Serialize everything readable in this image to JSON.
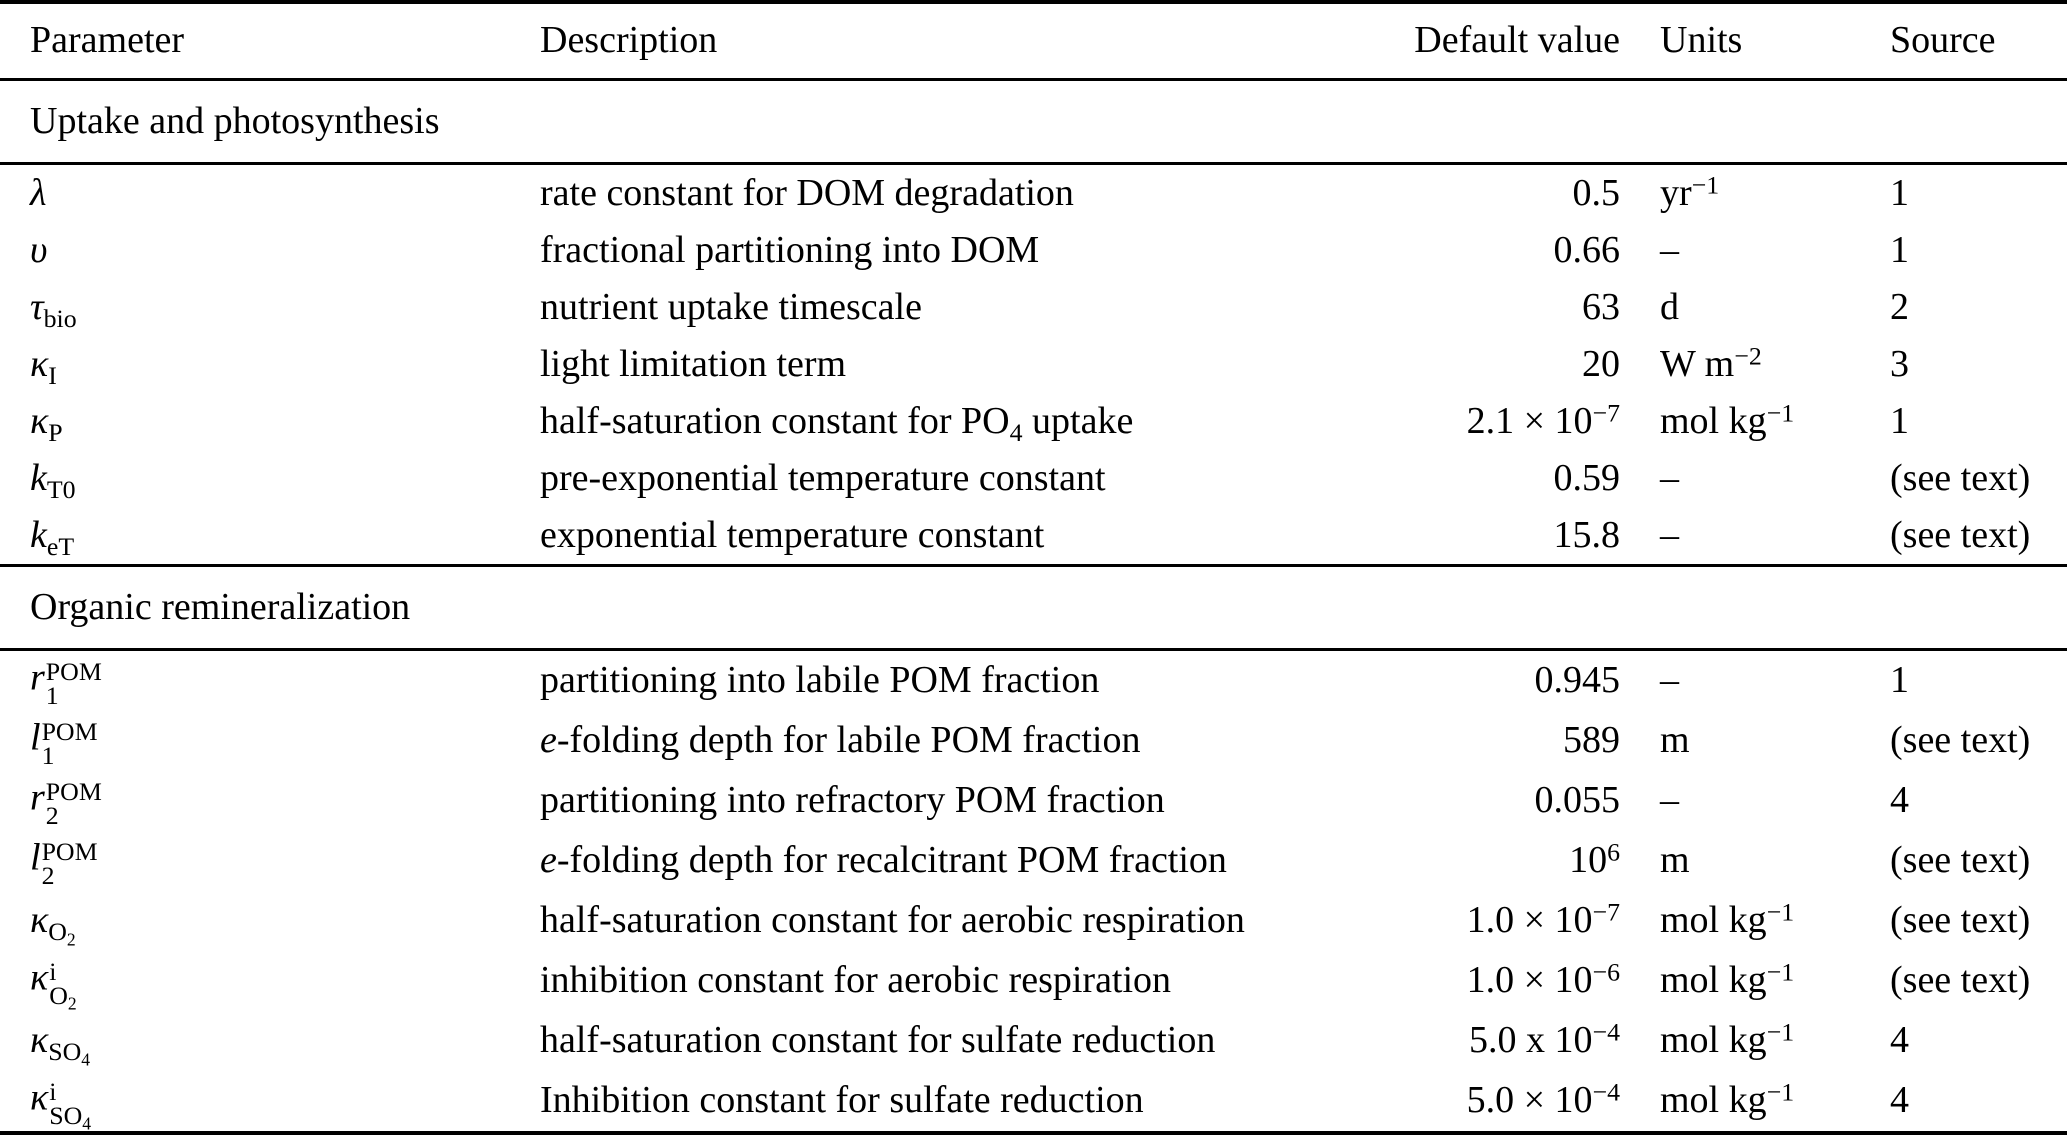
{
  "colors": {
    "text": "#000000",
    "background": "#ffffff"
  },
  "table": {
    "columns": [
      "Parameter",
      "Description",
      "Default value",
      "Units",
      "Source"
    ],
    "sections": [
      {
        "title": "Uptake and photosynthesis",
        "rows": [
          {
            "param": [
              {
                "i": "λ"
              }
            ],
            "desc": [
              {
                "t": "rate constant for DOM degradation"
              }
            ],
            "value": [
              {
                "t": "0.5"
              }
            ],
            "units": [
              {
                "t": "yr"
              },
              {
                "sup": "−1"
              }
            ],
            "source": [
              {
                "t": "1"
              }
            ]
          },
          {
            "param": [
              {
                "i": "υ"
              }
            ],
            "desc": [
              {
                "t": "fractional partitioning into DOM"
              }
            ],
            "value": [
              {
                "t": "0.66"
              }
            ],
            "units": [
              {
                "t": "–"
              }
            ],
            "source": [
              {
                "t": "1"
              }
            ]
          },
          {
            "param": [
              {
                "i": "τ"
              },
              {
                "sub": "bio"
              }
            ],
            "desc": [
              {
                "t": "nutrient uptake timescale"
              }
            ],
            "value": [
              {
                "t": "63"
              }
            ],
            "units": [
              {
                "t": "d"
              }
            ],
            "source": [
              {
                "t": "2"
              }
            ]
          },
          {
            "param": [
              {
                "i": "κ"
              },
              {
                "sub": "I"
              }
            ],
            "desc": [
              {
                "t": "light limitation term"
              }
            ],
            "value": [
              {
                "t": "20"
              }
            ],
            "units": [
              {
                "t": "W m"
              },
              {
                "sup": "−2"
              }
            ],
            "source": [
              {
                "t": "3"
              }
            ]
          },
          {
            "param": [
              {
                "i": "κ"
              },
              {
                "sub": "P"
              }
            ],
            "desc": [
              {
                "t": "half-saturation constant for PO"
              },
              {
                "sub": "4"
              },
              {
                "t": " uptake"
              }
            ],
            "value": [
              {
                "t": "2.1 × 10"
              },
              {
                "sup": "−7"
              }
            ],
            "units": [
              {
                "t": "mol kg"
              },
              {
                "sup": "−1"
              }
            ],
            "source": [
              {
                "t": "1"
              }
            ]
          },
          {
            "param": [
              {
                "i": "k"
              },
              {
                "sub": "T0"
              }
            ],
            "desc": [
              {
                "t": "pre-exponential temperature constant"
              }
            ],
            "value": [
              {
                "t": "0.59"
              }
            ],
            "units": [
              {
                "t": "–"
              }
            ],
            "source": [
              {
                "t": "(see text)"
              }
            ]
          },
          {
            "param": [
              {
                "i": "k"
              },
              {
                "sub": "eT"
              }
            ],
            "desc": [
              {
                "t": "exponential temperature constant"
              }
            ],
            "value": [
              {
                "t": "15.8"
              }
            ],
            "units": [
              {
                "t": "–"
              }
            ],
            "source": [
              {
                "t": "(see text)"
              }
            ]
          }
        ]
      },
      {
        "title": "Organic remineralization",
        "rows": [
          {
            "param": [
              {
                "i": "r"
              },
              {
                "stack": {
                  "sup": "POM",
                  "sub": "1"
                }
              }
            ],
            "desc": [
              {
                "t": "partitioning into labile POM fraction"
              }
            ],
            "value": [
              {
                "t": "0.945"
              }
            ],
            "units": [
              {
                "t": "–"
              }
            ],
            "source": [
              {
                "t": "1"
              }
            ]
          },
          {
            "param": [
              {
                "i": "l"
              },
              {
                "stack": {
                  "sup": "POM",
                  "sub": "1"
                }
              }
            ],
            "desc": [
              {
                "i": "e"
              },
              {
                "t": "-folding depth for labile POM fraction"
              }
            ],
            "value": [
              {
                "t": "589"
              }
            ],
            "units": [
              {
                "t": "m"
              }
            ],
            "source": [
              {
                "t": "(see text)"
              }
            ]
          },
          {
            "param": [
              {
                "i": "r"
              },
              {
                "stack": {
                  "sup": "POM",
                  "sub": "2"
                }
              }
            ],
            "desc": [
              {
                "t": "partitioning into refractory POM fraction"
              }
            ],
            "value": [
              {
                "t": "0.055"
              }
            ],
            "units": [
              {
                "t": "–"
              }
            ],
            "source": [
              {
                "t": "4"
              }
            ]
          },
          {
            "param": [
              {
                "i": "l"
              },
              {
                "stack": {
                  "sup": "POM",
                  "sub": "2"
                }
              }
            ],
            "desc": [
              {
                "i": "e"
              },
              {
                "t": "-folding depth for recalcitrant POM fraction"
              }
            ],
            "value": [
              {
                "t": "10"
              },
              {
                "sup": "6"
              }
            ],
            "units": [
              {
                "t": "m"
              }
            ],
            "source": [
              {
                "t": "(see text)"
              }
            ]
          },
          {
            "param": [
              {
                "i": "κ"
              },
              {
                "sub": [
                  {
                    "t": "O"
                  },
                  {
                    "sub": "2"
                  }
                ]
              }
            ],
            "desc": [
              {
                "t": "half-saturation constant for aerobic respiration"
              }
            ],
            "value": [
              {
                "t": "1.0 × 10"
              },
              {
                "sup": "−7"
              }
            ],
            "units": [
              {
                "t": "mol kg"
              },
              {
                "sup": "−1"
              }
            ],
            "source": [
              {
                "t": "(see text)"
              }
            ]
          },
          {
            "param": [
              {
                "i": "κ"
              },
              {
                "stack": {
                  "sup": "i",
                  "sub": [
                    {
                      "t": "O"
                    },
                    {
                      "sub": "2"
                    }
                  ]
                }
              }
            ],
            "desc": [
              {
                "t": "inhibition constant for aerobic respiration"
              }
            ],
            "value": [
              {
                "t": "1.0 × 10"
              },
              {
                "sup": "−6"
              }
            ],
            "units": [
              {
                "t": "mol kg"
              },
              {
                "sup": "−1"
              }
            ],
            "source": [
              {
                "t": "(see text)"
              }
            ]
          },
          {
            "param": [
              {
                "i": "κ"
              },
              {
                "sub": [
                  {
                    "t": "SO"
                  },
                  {
                    "sub": "4"
                  }
                ]
              }
            ],
            "desc": [
              {
                "t": "half-saturation constant for sulfate reduction"
              }
            ],
            "value": [
              {
                "t": "5.0 x 10"
              },
              {
                "sup": "−4"
              }
            ],
            "units": [
              {
                "t": "mol kg"
              },
              {
                "sup": "−1"
              }
            ],
            "source": [
              {
                "t": "4"
              }
            ]
          },
          {
            "param": [
              {
                "i": "κ"
              },
              {
                "stack": {
                  "sup": "i",
                  "sub": [
                    {
                      "t": "SO"
                    },
                    {
                      "sub": "4"
                    }
                  ]
                }
              }
            ],
            "desc": [
              {
                "t": "Inhibition constant for sulfate reduction"
              }
            ],
            "value": [
              {
                "t": "5.0 × 10"
              },
              {
                "sup": "−4"
              }
            ],
            "units": [
              {
                "t": "mol kg"
              },
              {
                "sup": "−1"
              }
            ],
            "source": [
              {
                "t": "4"
              }
            ]
          }
        ]
      }
    ]
  }
}
